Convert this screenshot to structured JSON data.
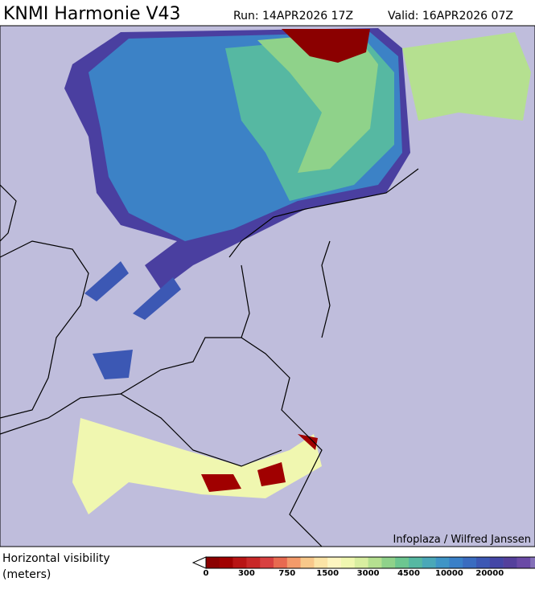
{
  "header": {
    "title": "KNMI Harmonie V43",
    "run": "Run: 14APR2026 17Z",
    "valid": "Valid: 16APR2026 07Z"
  },
  "credit": "Infoplaza / Wilfred Janssen",
  "legend": {
    "label_line1": "Horizontal visibility",
    "label_line2": "(meters)",
    "ticks": [
      "0",
      "300",
      "750",
      "1500",
      "3000",
      "4500",
      "10000",
      "20000"
    ],
    "colors": [
      "#8b0000",
      "#a00000",
      "#b81414",
      "#c82828",
      "#d84040",
      "#e86a50",
      "#f39a6a",
      "#f8c88a",
      "#fbe4a6",
      "#fdf5c0",
      "#f0f7b0",
      "#d8eea0",
      "#b5e090",
      "#8fd28a",
      "#6cc690",
      "#56b8a2",
      "#4aa8b8",
      "#3f95c6",
      "#3a80c8",
      "#3a6cc0",
      "#3c58b4",
      "#4446a6",
      "#54409c",
      "#6a4aa6",
      "#8470b8"
    ]
  }
}
